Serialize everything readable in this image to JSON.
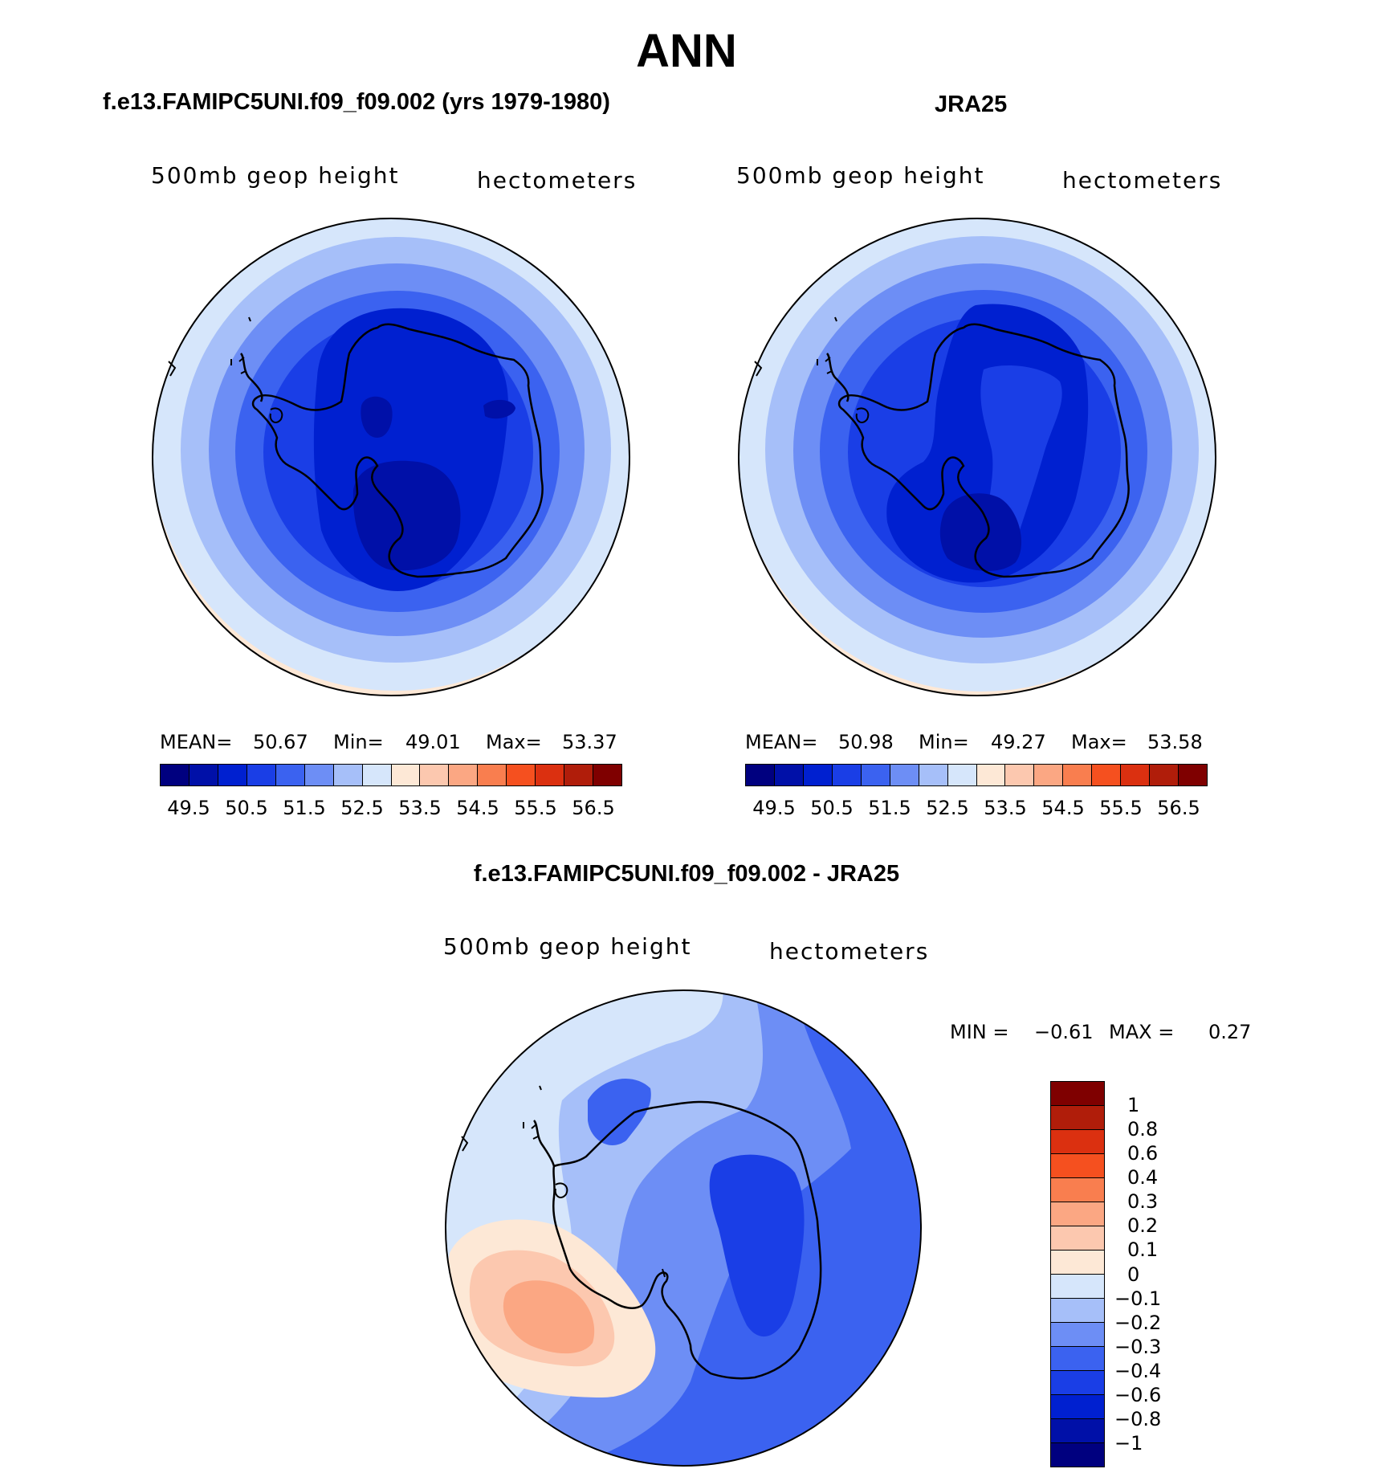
{
  "title": "ANN",
  "panels": [
    {
      "title": "f.e13.FAMIPC5UNI.f09_f09.002 (yrs 1979-1980)",
      "variable": "500mb geop height",
      "units": "hectometers",
      "stats": {
        "mean_label": "MEAN=",
        "mean": "50.67",
        "min_label": "Min=",
        "min": "49.01",
        "max_label": "Max=",
        "max": "53.37"
      }
    },
    {
      "title": "JRA25",
      "variable": "500mb geop height",
      "units": "hectometers",
      "stats": {
        "mean_label": "MEAN=",
        "mean": "50.98",
        "min_label": "Min=",
        "min": "49.27",
        "max_label": "Max=",
        "max": "53.58"
      }
    },
    {
      "title": "f.e13.FAMIPC5UNI.f09_f09.002 - JRA25",
      "variable": "500mb geop height",
      "units": "hectometers",
      "stats": {
        "min_label": "MIN =",
        "min": "−0.61",
        "max_label": "MAX =",
        "max": "0.27"
      }
    }
  ],
  "colorbar_main": {
    "colors": [
      "#00007f",
      "#0010a8",
      "#0020d0",
      "#1a3ee6",
      "#3b62f0",
      "#6d8ef5",
      "#a6bff9",
      "#d6e6fb",
      "#fde8d6",
      "#fcc8af",
      "#fba783",
      "#f97e4f",
      "#f5501f",
      "#db3010",
      "#b01d0a",
      "#7f0000"
    ],
    "tick_labels": [
      "49.5",
      "50.5",
      "51.5",
      "52.5",
      "53.5",
      "54.5",
      "55.5",
      "56.5"
    ]
  },
  "colorbar_diff": {
    "colors": [
      "#7f0000",
      "#b01d0a",
      "#db3010",
      "#f5501f",
      "#f97e4f",
      "#fba783",
      "#fcc8af",
      "#fde8d6",
      "#d6e6fb",
      "#a6bff9",
      "#6d8ef5",
      "#3b62f0",
      "#1a3ee6",
      "#0020d0",
      "#0010a8",
      "#00007f"
    ],
    "tick_labels": [
      "1",
      "0.8",
      "0.6",
      "0.4",
      "0.3",
      "0.2",
      "0.1",
      "0",
      "−0.1",
      "−0.2",
      "−0.3",
      "−0.4",
      "−0.6",
      "−0.8",
      "−1"
    ]
  },
  "map_colors": {
    "c_4930": "#00007f",
    "c_4950": "#0010a8",
    "c_5000": "#0020d0",
    "c_5050": "#1a3ee6",
    "c_5100": "#3b62f0",
    "c_5150": "#6d8ef5",
    "c_5200": "#a6bff9",
    "c_5250": "#d6e6fb",
    "c_5300": "#fde8d6",
    "d_02": "#fba783",
    "d_01": "#fcc8af",
    "d_00": "#fde8d6",
    "d_m01": "#d6e6fb",
    "d_m02": "#a6bff9",
    "d_m03": "#6d8ef5",
    "d_m04": "#3b62f0",
    "d_m06": "#1a3ee6"
  }
}
